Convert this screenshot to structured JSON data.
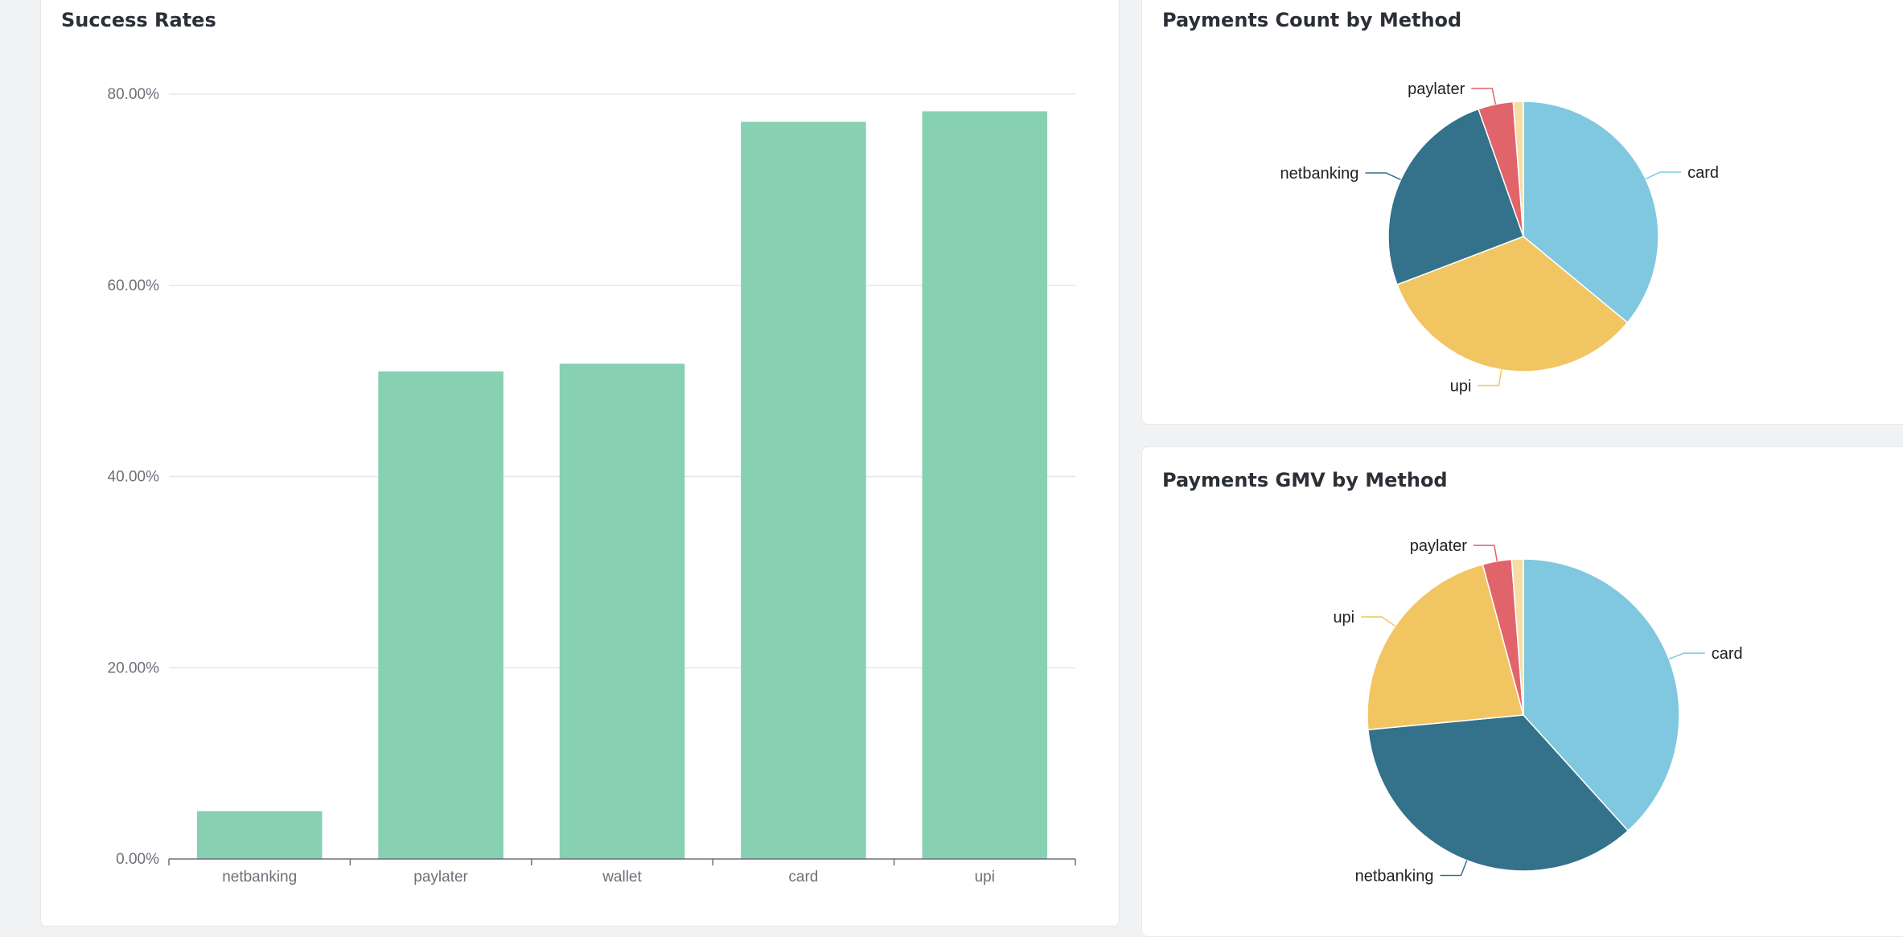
{
  "cards": {
    "success": {
      "title": "Success Rates"
    },
    "count": {
      "title": "Payments Count by Method"
    },
    "gmv": {
      "title": "Payments GMV by Method"
    }
  },
  "colors": {
    "bar": "#87d0b2",
    "grid": "#e3e6ec",
    "axis": "#6e7079",
    "card": "#7fc8df",
    "netbanking": "#33728a",
    "upi": "#f2c563",
    "paylater": "#e0646a",
    "wallet": "#f6dda6"
  },
  "chart_data": [
    {
      "type": "bar",
      "title": "Success Rates",
      "categories": [
        "netbanking",
        "paylater",
        "wallet",
        "card",
        "upi"
      ],
      "values": [
        5.0,
        51.0,
        51.8,
        77.1,
        78.2
      ],
      "ylim": [
        0,
        80
      ],
      "yticks": [
        "0.00%",
        "20.00%",
        "40.00%",
        "60.00%",
        "80.00%"
      ],
      "ytick_values": [
        0,
        20,
        40,
        60,
        80
      ],
      "grid": true
    },
    {
      "type": "pie",
      "title": "Payments Count by Method",
      "labels": [
        "card",
        "upi",
        "netbanking",
        "paylater",
        "wallet"
      ],
      "values": [
        36.0,
        33.2,
        25.4,
        4.2,
        1.2
      ],
      "shown_labels": [
        "card",
        "upi",
        "netbanking",
        "paylater"
      ]
    },
    {
      "type": "pie",
      "title": "Payments GMV by Method",
      "labels": [
        "card",
        "netbanking",
        "upi",
        "paylater",
        "wallet"
      ],
      "values": [
        38.3,
        35.2,
        22.3,
        3.0,
        1.2
      ],
      "shown_labels": [
        "card",
        "netbanking",
        "upi",
        "paylater"
      ]
    }
  ]
}
